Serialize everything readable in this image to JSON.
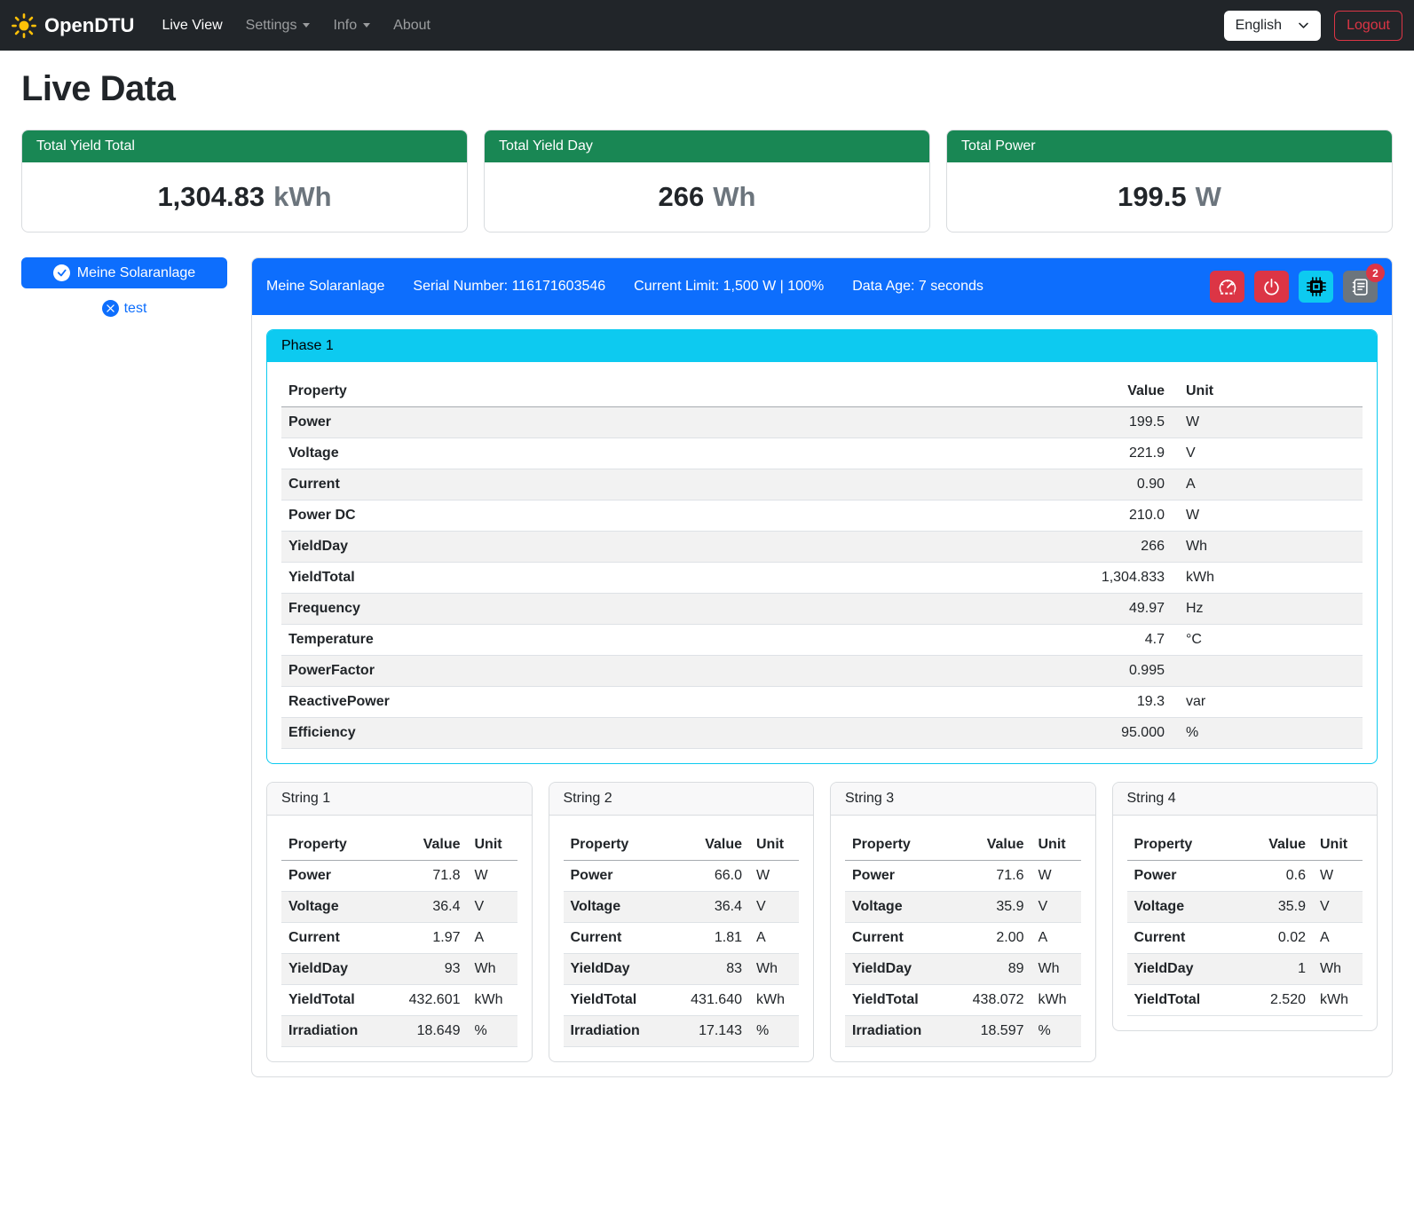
{
  "navbar": {
    "brand": "OpenDTU",
    "items": [
      {
        "label": "Live View",
        "active": true,
        "dropdown": false
      },
      {
        "label": "Settings",
        "active": false,
        "dropdown": true
      },
      {
        "label": "Info",
        "active": false,
        "dropdown": true
      },
      {
        "label": "About",
        "active": false,
        "dropdown": false
      }
    ],
    "language_selected": "English",
    "logout_label": "Logout"
  },
  "page_title": "Live Data",
  "summary_cards": [
    {
      "title": "Total Yield Total",
      "value": "1,304.83",
      "unit": "kWh"
    },
    {
      "title": "Total Yield Day",
      "value": "266",
      "unit": "Wh"
    },
    {
      "title": "Total Power",
      "value": "199.5",
      "unit": "W"
    }
  ],
  "sidebar": {
    "inverter_button_label": "Meine Solaranlage",
    "secondary_link_label": "test"
  },
  "inverter": {
    "name": "Meine Solaranlage",
    "serial": "Serial Number: 116171603546",
    "limit": "Current Limit: 1,500 W | 100%",
    "data_age": "Data Age: 7 seconds",
    "events_badge": "2",
    "action_icons": [
      "speedometer-icon",
      "power-icon",
      "cpu-icon",
      "journal-text-icon"
    ]
  },
  "phase": {
    "title": "Phase 1",
    "columns": [
      "Property",
      "Value",
      "Unit"
    ],
    "rows": [
      [
        "Power",
        "199.5",
        "W"
      ],
      [
        "Voltage",
        "221.9",
        "V"
      ],
      [
        "Current",
        "0.90",
        "A"
      ],
      [
        "Power DC",
        "210.0",
        "W"
      ],
      [
        "YieldDay",
        "266",
        "Wh"
      ],
      [
        "YieldTotal",
        "1,304.833",
        "kWh"
      ],
      [
        "Frequency",
        "49.97",
        "Hz"
      ],
      [
        "Temperature",
        "4.7",
        "°C"
      ],
      [
        "PowerFactor",
        "0.995",
        ""
      ],
      [
        "ReactivePower",
        "19.3",
        "var"
      ],
      [
        "Efficiency",
        "95.000",
        "%"
      ]
    ]
  },
  "strings": [
    {
      "title": "String 1",
      "columns": [
        "Property",
        "Value",
        "Unit"
      ],
      "rows": [
        [
          "Power",
          "71.8",
          "W"
        ],
        [
          "Voltage",
          "36.4",
          "V"
        ],
        [
          "Current",
          "1.97",
          "A"
        ],
        [
          "YieldDay",
          "93",
          "Wh"
        ],
        [
          "YieldTotal",
          "432.601",
          "kWh"
        ],
        [
          "Irradiation",
          "18.649",
          "%"
        ]
      ]
    },
    {
      "title": "String 2",
      "columns": [
        "Property",
        "Value",
        "Unit"
      ],
      "rows": [
        [
          "Power",
          "66.0",
          "W"
        ],
        [
          "Voltage",
          "36.4",
          "V"
        ],
        [
          "Current",
          "1.81",
          "A"
        ],
        [
          "YieldDay",
          "83",
          "Wh"
        ],
        [
          "YieldTotal",
          "431.640",
          "kWh"
        ],
        [
          "Irradiation",
          "17.143",
          "%"
        ]
      ]
    },
    {
      "title": "String 3",
      "columns": [
        "Property",
        "Value",
        "Unit"
      ],
      "rows": [
        [
          "Power",
          "71.6",
          "W"
        ],
        [
          "Voltage",
          "35.9",
          "V"
        ],
        [
          "Current",
          "2.00",
          "A"
        ],
        [
          "YieldDay",
          "89",
          "Wh"
        ],
        [
          "YieldTotal",
          "438.072",
          "kWh"
        ],
        [
          "Irradiation",
          "18.597",
          "%"
        ]
      ]
    },
    {
      "title": "String 4",
      "columns": [
        "Property",
        "Value",
        "Unit"
      ],
      "rows": [
        [
          "Power",
          "0.6",
          "W"
        ],
        [
          "Voltage",
          "35.9",
          "V"
        ],
        [
          "Current",
          "0.02",
          "A"
        ],
        [
          "YieldDay",
          "1",
          "Wh"
        ],
        [
          "YieldTotal",
          "2.520",
          "kWh"
        ]
      ]
    }
  ],
  "colors": {
    "primary": "#0d6efd",
    "success": "#198754",
    "info": "#0dcaf0",
    "danger": "#dc3545",
    "secondary": "#6c757d",
    "navbar_bg": "#212529",
    "brand_sun": "#ffc107"
  }
}
